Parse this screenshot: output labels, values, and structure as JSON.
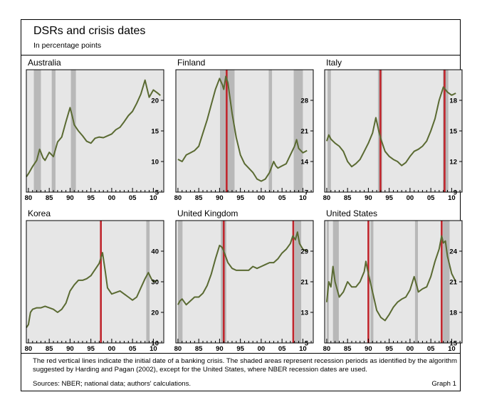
{
  "figure": {
    "title": "DSRs and crisis dates",
    "subtitle": "In percentage points",
    "note": "The red vertical lines indicate the initial date of a banking crisis. The shaded areas represent recession periods as identified by the algorithm suggested by Harding and Pagan (2002), except for the United States, where NBER recession dates are used.",
    "sources": "Sources: NBER; national data; authors' calculations.",
    "graph_label": "Graph 1"
  },
  "colors": {
    "series": "#5a6a32",
    "crisis": "#c0262d",
    "recession": "#b8b8b8",
    "panel_bg": "#e6e6e6"
  },
  "chart_data": [
    {
      "type": "line",
      "title": "Australia",
      "x_ticks": [
        "80",
        "85",
        "90",
        "95",
        "00",
        "05",
        "10"
      ],
      "y_ticks": [
        5,
        10,
        15,
        20
      ],
      "ylim": [
        5,
        25
      ],
      "recessions": [
        [
          1981.3,
          1983.0
        ],
        [
          1985.6,
          1986.5
        ],
        [
          1990.2,
          1991.4
        ]
      ],
      "crises": [],
      "points": [
        [
          1979.5,
          7.5
        ],
        [
          1980,
          8
        ],
        [
          1981,
          9.2
        ],
        [
          1982,
          10.2
        ],
        [
          1982.7,
          12
        ],
        [
          1983.5,
          10.6
        ],
        [
          1984,
          10.2
        ],
        [
          1985,
          11.5
        ],
        [
          1986,
          10.8
        ],
        [
          1987,
          13.2
        ],
        [
          1988,
          14
        ],
        [
          1989,
          16.5
        ],
        [
          1990,
          18.8
        ],
        [
          1990.5,
          17.5
        ],
        [
          1991,
          16
        ],
        [
          1992,
          15
        ],
        [
          1993,
          14.2
        ],
        [
          1994,
          13.3
        ],
        [
          1995,
          13
        ],
        [
          1996,
          13.8
        ],
        [
          1997,
          14
        ],
        [
          1998,
          13.9
        ],
        [
          1999,
          14.2
        ],
        [
          2000,
          14.5
        ],
        [
          2001,
          15.2
        ],
        [
          2002,
          15.6
        ],
        [
          2003,
          16.5
        ],
        [
          2004,
          17.5
        ],
        [
          2005,
          18.2
        ],
        [
          2006,
          19.5
        ],
        [
          2007,
          21
        ],
        [
          2008,
          23.3
        ],
        [
          2009,
          20.5
        ],
        [
          2010,
          21.7
        ],
        [
          2011,
          21.2
        ],
        [
          2011.7,
          20.8
        ]
      ]
    },
    {
      "type": "line",
      "title": "Finland",
      "x_ticks": [
        "80",
        "85",
        "90",
        "95",
        "00",
        "05",
        "10"
      ],
      "y_ticks": [
        7,
        14,
        21,
        28
      ],
      "ylim": [
        7,
        35
      ],
      "recessions": [
        [
          1990.1,
          1993.6
        ],
        [
          2001.8,
          2002.6
        ],
        [
          2007.8,
          2010.0
        ]
      ],
      "crises": [
        1991.7
      ],
      "points": [
        [
          1980,
          14.5
        ],
        [
          1981,
          14
        ],
        [
          1982,
          15.5
        ],
        [
          1983,
          16
        ],
        [
          1984,
          16.5
        ],
        [
          1985,
          17.5
        ],
        [
          1986,
          20.5
        ],
        [
          1987,
          23.5
        ],
        [
          1988,
          27
        ],
        [
          1989,
          30.5
        ],
        [
          1990,
          33
        ],
        [
          1990.7,
          31.5
        ],
        [
          1991,
          30.5
        ],
        [
          1991.5,
          33.5
        ],
        [
          1992,
          32
        ],
        [
          1993,
          25
        ],
        [
          1994,
          19.5
        ],
        [
          1995,
          15.5
        ],
        [
          1996,
          13.5
        ],
        [
          1997,
          12.5
        ],
        [
          1998,
          11.5
        ],
        [
          1999,
          10
        ],
        [
          2000,
          9.5
        ],
        [
          2001,
          10
        ],
        [
          2002,
          11.5
        ],
        [
          2003,
          14
        ],
        [
          2003.5,
          13
        ],
        [
          2004,
          12.5
        ],
        [
          2005,
          13
        ],
        [
          2006,
          13.5
        ],
        [
          2007,
          15.5
        ],
        [
          2008,
          17.5
        ],
        [
          2008.5,
          19
        ],
        [
          2009,
          17
        ],
        [
          2010,
          16
        ],
        [
          2011,
          16.5
        ]
      ]
    },
    {
      "type": "line",
      "title": "Italy",
      "x_ticks": [
        "80",
        "85",
        "90",
        "95",
        "00",
        "05",
        "10"
      ],
      "y_ticks": [
        9,
        12,
        15,
        18
      ],
      "ylim": [
        9,
        21
      ],
      "recessions": [
        [
          1980.2,
          1981.0
        ],
        [
          1992.3,
          1993.3
        ],
        [
          2007.9,
          2009.2
        ]
      ],
      "crises": [
        1992.9,
        2008.3
      ],
      "points": [
        [
          1980,
          14
        ],
        [
          1980.5,
          14.6
        ],
        [
          1981,
          14.2
        ],
        [
          1982,
          13.8
        ],
        [
          1983,
          13.5
        ],
        [
          1984,
          13
        ],
        [
          1985,
          12
        ],
        [
          1986,
          11.5
        ],
        [
          1987,
          11.8
        ],
        [
          1988,
          12.2
        ],
        [
          1989,
          13
        ],
        [
          1990,
          13.8
        ],
        [
          1991,
          14.8
        ],
        [
          1991.8,
          16.3
        ],
        [
          1992.5,
          15
        ],
        [
          1993,
          14.2
        ],
        [
          1994,
          13
        ],
        [
          1995,
          12.5
        ],
        [
          1996,
          12.2
        ],
        [
          1997,
          12
        ],
        [
          1998,
          11.6
        ],
        [
          1999,
          11.9
        ],
        [
          2000,
          12.5
        ],
        [
          2001,
          13
        ],
        [
          2002,
          13.2
        ],
        [
          2003,
          13.5
        ],
        [
          2004,
          14
        ],
        [
          2005,
          15
        ],
        [
          2006,
          16.2
        ],
        [
          2007,
          18
        ],
        [
          2008,
          19.3
        ],
        [
          2009,
          18.8
        ],
        [
          2010,
          18.5
        ],
        [
          2011,
          18.7
        ]
      ]
    },
    {
      "type": "line",
      "title": "Korea",
      "x_ticks": [
        "80",
        "85",
        "90",
        "95",
        "00",
        "05",
        "10"
      ],
      "y_ticks": [
        10,
        20,
        30,
        40
      ],
      "ylim": [
        10,
        50
      ],
      "recessions": [
        [
          2008.3,
          2009.1
        ]
      ],
      "crises": [
        1997.4
      ],
      "points": [
        [
          1979.5,
          15
        ],
        [
          1980,
          16
        ],
        [
          1980.5,
          20
        ],
        [
          1981,
          21
        ],
        [
          1982,
          21.5
        ],
        [
          1983,
          21.5
        ],
        [
          1984,
          22
        ],
        [
          1985,
          21.5
        ],
        [
          1986,
          21
        ],
        [
          1987,
          20
        ],
        [
          1988,
          21
        ],
        [
          1989,
          23
        ],
        [
          1990,
          27
        ],
        [
          1991,
          29
        ],
        [
          1992,
          30.5
        ],
        [
          1993,
          30.5
        ],
        [
          1994,
          31
        ],
        [
          1995,
          32
        ],
        [
          1996,
          34
        ],
        [
          1997,
          36
        ],
        [
          1997.8,
          39.5
        ],
        [
          1998.5,
          33
        ],
        [
          1999,
          28
        ],
        [
          2000,
          26
        ],
        [
          2001,
          26.5
        ],
        [
          2002,
          27
        ],
        [
          2003,
          26
        ],
        [
          2004,
          25
        ],
        [
          2005,
          24
        ],
        [
          2006,
          25
        ],
        [
          2007,
          28
        ],
        [
          2008,
          31
        ],
        [
          2008.8,
          33
        ],
        [
          2009.5,
          31
        ],
        [
          2010,
          30
        ],
        [
          2011,
          30.5
        ]
      ]
    },
    {
      "type": "line",
      "title": "United Kingdom",
      "x_ticks": [
        "80",
        "85",
        "90",
        "95",
        "00",
        "05",
        "10"
      ],
      "y_ticks": [
        5,
        13,
        21,
        29
      ],
      "ylim": [
        5,
        37
      ],
      "recessions": [
        [
          1980.0,
          1981.1
        ],
        [
          1990.3,
          1991.6
        ],
        [
          2008.0,
          2009.6
        ]
      ],
      "crises": [
        1991.0,
        2007.7
      ],
      "points": [
        [
          1980,
          15
        ],
        [
          1980.5,
          16
        ],
        [
          1981,
          16.5
        ],
        [
          1982,
          15
        ],
        [
          1983,
          16
        ],
        [
          1984,
          17
        ],
        [
          1985,
          17
        ],
        [
          1986,
          18
        ],
        [
          1987,
          20
        ],
        [
          1988,
          23
        ],
        [
          1989,
          27
        ],
        [
          1990,
          30.5
        ],
        [
          1990.6,
          30
        ],
        [
          1991,
          29
        ],
        [
          1992,
          26
        ],
        [
          1993,
          24.5
        ],
        [
          1994,
          24
        ],
        [
          1995,
          24
        ],
        [
          1996,
          24
        ],
        [
          1997,
          24
        ],
        [
          1998,
          25
        ],
        [
          1999,
          24.5
        ],
        [
          2000,
          25
        ],
        [
          2001,
          25.5
        ],
        [
          2002,
          26
        ],
        [
          2003,
          26
        ],
        [
          2004,
          27
        ],
        [
          2005,
          28.5
        ],
        [
          2006,
          29.5
        ],
        [
          2007,
          31
        ],
        [
          2007.6,
          33
        ],
        [
          2008.2,
          32
        ],
        [
          2008.7,
          34
        ],
        [
          2009.2,
          31
        ],
        [
          2010,
          29.5
        ],
        [
          2011,
          29
        ]
      ]
    },
    {
      "type": "line",
      "title": "United States",
      "x_ticks": [
        "80",
        "85",
        "90",
        "95",
        "00",
        "05",
        "10"
      ],
      "y_ticks": [
        15,
        18,
        21,
        24
      ],
      "ylim": [
        15,
        27
      ],
      "recessions": [
        [
          1980.0,
          1980.5
        ],
        [
          1981.5,
          1982.9
        ],
        [
          1990.5,
          1991.2
        ],
        [
          2001.2,
          2001.9
        ],
        [
          2007.9,
          2009.5
        ]
      ],
      "crises": [
        1990.0,
        2007.6
      ],
      "points": [
        [
          1980,
          19
        ],
        [
          1980.5,
          21
        ],
        [
          1981,
          20.5
        ],
        [
          1981.5,
          22.5
        ],
        [
          1982,
          21
        ],
        [
          1983,
          19.5
        ],
        [
          1984,
          20
        ],
        [
          1985,
          21
        ],
        [
          1986,
          20.5
        ],
        [
          1987,
          20.5
        ],
        [
          1988,
          21
        ],
        [
          1989,
          22
        ],
        [
          1989.4,
          23
        ],
        [
          1990,
          21.8
        ],
        [
          1991,
          20
        ],
        [
          1992,
          18.2
        ],
        [
          1993,
          17.5
        ],
        [
          1994,
          17.2
        ],
        [
          1995,
          17.8
        ],
        [
          1996,
          18.5
        ],
        [
          1997,
          19
        ],
        [
          1998,
          19.3
        ],
        [
          1999,
          19.5
        ],
        [
          2000,
          20.2
        ],
        [
          2001,
          21.5
        ],
        [
          2001.7,
          20.5
        ],
        [
          2002,
          20
        ],
        [
          2003,
          20.3
        ],
        [
          2004,
          20.5
        ],
        [
          2005,
          21.5
        ],
        [
          2006,
          23
        ],
        [
          2007,
          24.2
        ],
        [
          2007.6,
          25.5
        ],
        [
          2008,
          24.8
        ],
        [
          2008.5,
          25
        ],
        [
          2009,
          23.5
        ],
        [
          2010,
          21.8
        ],
        [
          2011,
          21
        ]
      ]
    }
  ]
}
